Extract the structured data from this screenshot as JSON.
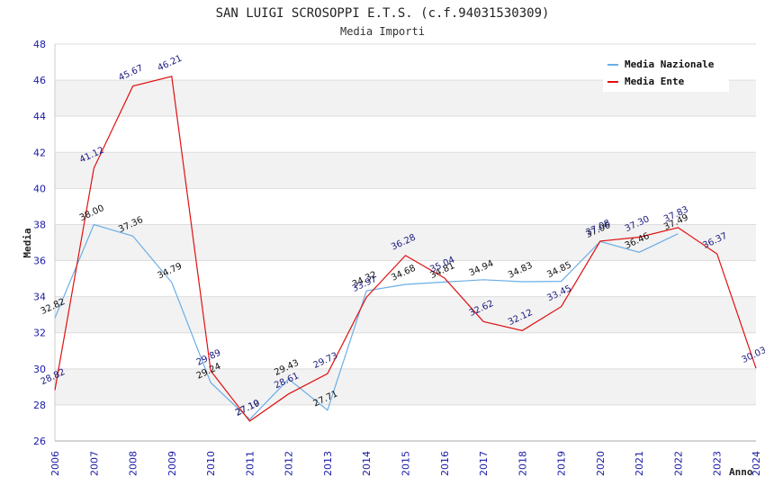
{
  "chart_data": {
    "type": "line",
    "title": "SAN LUIGI SCROSOPPI E.T.S. (c.f.94031530309)",
    "subtitle": "Media Importi",
    "xlabel": "Anno",
    "ylabel": "Media",
    "ylim": [
      26,
      48
    ],
    "yticks": [
      "26",
      "28",
      "30",
      "32",
      "34",
      "36",
      "38",
      "40",
      "42",
      "44",
      "46",
      "48"
    ],
    "categories": [
      "2006",
      "2007",
      "2008",
      "2009",
      "2010",
      "2011",
      "2012",
      "2013",
      "2014",
      "2015",
      "2016",
      "2017",
      "2018",
      "2019",
      "2020",
      "2021",
      "2022",
      "2023",
      "2024"
    ],
    "grid": true,
    "legend_position": "top-right",
    "series": [
      {
        "name": "Media Nazionale",
        "color": "#6aaee6",
        "values": [
          32.82,
          38.0,
          37.36,
          34.79,
          29.24,
          27.19,
          29.43,
          27.71,
          34.32,
          34.68,
          34.81,
          34.94,
          34.83,
          34.85,
          37.06,
          36.46,
          37.49,
          null,
          null
        ],
        "labels": [
          "32.82",
          "38.00",
          "37.36",
          "34.79",
          "29.24",
          "27.19",
          "29.43",
          "27.71",
          "34.32",
          "34.68",
          "34.81",
          "34.94",
          "34.83",
          "34.85",
          "37.06",
          "36.46",
          "37.49",
          "",
          ""
        ]
      },
      {
        "name": "Media Ente",
        "color": "#e01010",
        "values": [
          28.82,
          41.12,
          45.67,
          46.21,
          29.89,
          27.1,
          28.61,
          29.73,
          33.97,
          36.28,
          35.04,
          32.62,
          32.12,
          33.45,
          37.08,
          37.3,
          37.83,
          36.37,
          30.03
        ],
        "labels": [
          "28.82",
          "41.12",
          "45.67",
          "46.21",
          "29.89",
          "27.10",
          "28.61",
          "29.73",
          "33.97",
          "36.28",
          "35.04",
          "32.62",
          "32.12",
          "33.45",
          "37.08",
          "37.30",
          "37.83",
          "36.37",
          "30.03"
        ]
      }
    ]
  }
}
